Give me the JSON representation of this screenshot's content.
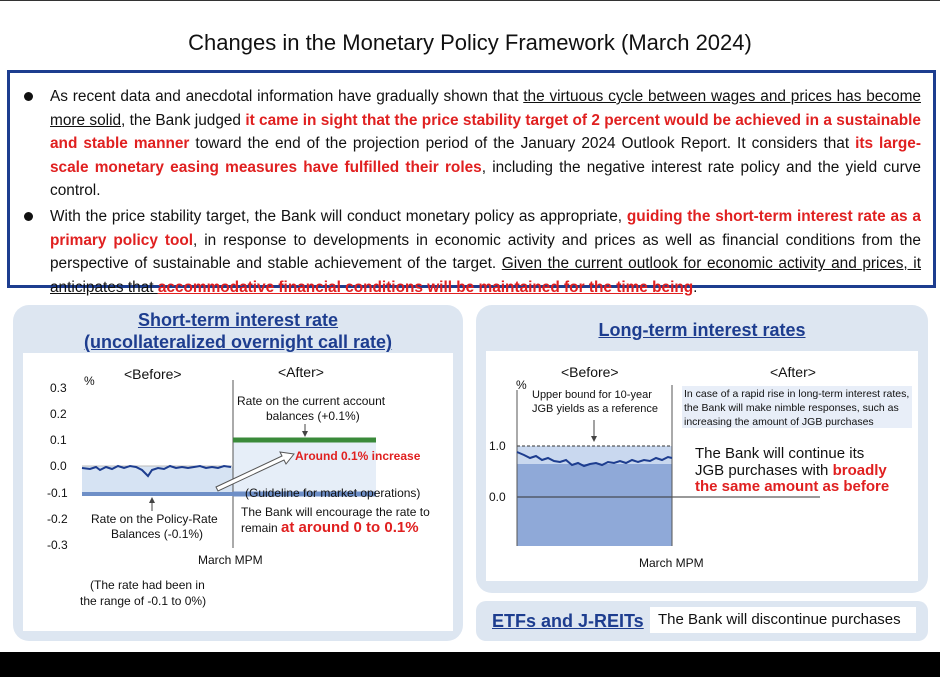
{
  "title": "Changes in the Monetary Policy Framework (March 2024)",
  "summary": {
    "b1_p1": "As recent data and anecdotal information have gradually shown that ",
    "b1_u1": "the virtuous cycle between wages and prices has become more solid",
    "b1_p2": ", the Bank judged ",
    "b1_r1": "it came in sight that the price stability target of 2 percent would be achieved in a sustainable and stable manner",
    "b1_p3": " toward the end of the projection period of the January 2024 Outlook Report. It considers that ",
    "b1_r2": "its large-scale monetary easing measures have fulfilled their roles",
    "b1_p4": ", including the negative interest rate policy and the yield curve control.",
    "b2_p1": "With the price stability target, the Bank will conduct monetary policy as appropriate, ",
    "b2_r1": "guiding the short-term interest rate as a primary policy tool",
    "b2_p2": ", in response to developments in economic activity and prices as well as financial conditions from the perspective of sustainable and stable achievement of the target. ",
    "b2_u1": "Given the current outlook for economic activity and prices, it anticipates that ",
    "b2_ru": "accommodative financial conditions will be maintained for the time being",
    "b2_p3": "."
  },
  "short_term": {
    "title_line1": "Short-term interest rate",
    "title_line2": "(uncollateralized overnight call rate)",
    "unit": "%",
    "yticks": [
      "0.3",
      "0.2",
      "0.1",
      "0.0",
      "-0.1",
      "-0.2",
      "-0.3"
    ],
    "before_label": "<Before>",
    "after_label": "<After>",
    "current_account_label_1": "Rate on the current account",
    "current_account_label_2": "balances (+0.1%)",
    "increase_label": "Around 0.1% increase",
    "guideline_label": "(Guideline for market operations)",
    "encourage_line1": "The Bank will encourage the rate to",
    "encourage_line2_prefix": "remain ",
    "encourage_line2_red": "at around 0 to 0.1%",
    "policy_rate_label_1": "Rate on the Policy-Rate",
    "policy_rate_label_2": "Balances (-0.1%)",
    "mpm_label": "March MPM",
    "range_note_1": "(The rate had been in",
    "range_note_2": "the range of -0.1 to 0%)"
  },
  "long_term": {
    "title": "Long-term interest rates",
    "unit": "%",
    "yticks": [
      "1.0",
      "0.0"
    ],
    "before_label": "<Before>",
    "after_label": "<After>",
    "upper_bound_1": "Upper bound for 10-year",
    "upper_bound_2": "JGB yields as a reference",
    "rapid_rise_1": "In case of a rapid rise in long-term interest rates,",
    "rapid_rise_2": "the Bank will make nimble responses, such as",
    "rapid_rise_3": "increasing the amount of JGB purchases",
    "continue_1": "The Bank will continue its",
    "continue_2_prefix": "JGB purchases with ",
    "continue_2_red": "broadly",
    "continue_3": "the same amount as before",
    "mpm_label": "March MPM"
  },
  "etf": {
    "title": "ETFs and J-REITs",
    "text": "The Bank will discontinue purchases"
  },
  "colors": {
    "navy": "#1d3d8f",
    "red": "#e02020",
    "panel_bg": "#dde6f1",
    "green_line": "#3a8a3a",
    "blue_line": "#6e8fc7",
    "jgb_fill": "#8fa9d8"
  }
}
